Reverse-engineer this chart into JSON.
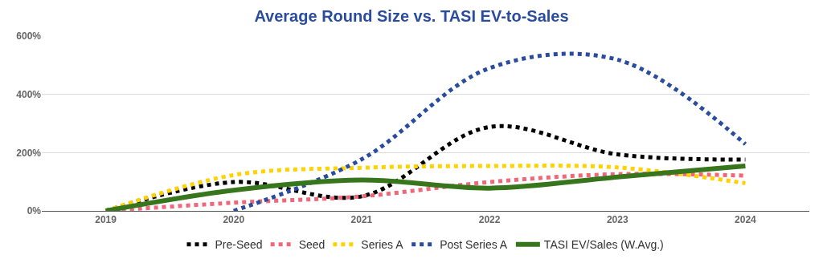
{
  "chart_data": {
    "type": "line",
    "title": "Average Round Size vs. TASI EV-to-Sales",
    "x": [
      2019,
      2020,
      2021,
      2022,
      2023,
      2024
    ],
    "series": [
      {
        "name": "Pre-Seed",
        "color": "#000000",
        "line_style": "dotted",
        "values": [
          0,
          99,
          50,
          288,
          194,
          176
        ]
      },
      {
        "name": "Seed",
        "color": "#f0677a",
        "line_style": "dotted",
        "values": [
          0,
          28,
          50,
          99,
          126,
          121
        ]
      },
      {
        "name": "Series A",
        "color": "#ffd200",
        "line_style": "dotted",
        "values": [
          0,
          123,
          148,
          154,
          149,
          95
        ]
      },
      {
        "name": "Post Series A",
        "color": "#2a4c9e",
        "line_style": "dotted",
        "values": [
          null,
          0,
          177,
          490,
          519,
          229
        ]
      },
      {
        "name": "TASI EV/Sales (W.Avg.)",
        "color": "#38761d",
        "line_style": "solid",
        "values": [
          0,
          71,
          106,
          78,
          116,
          154
        ]
      }
    ],
    "xlim": [
      2018.5,
      2024.5
    ],
    "xticks": [
      2019,
      2020,
      2021,
      2022,
      2023,
      2024
    ],
    "ylim": [
      0,
      600
    ],
    "yticks": [
      {
        "value": 0,
        "label": "0%"
      },
      {
        "value": 200,
        "label": "200%"
      },
      {
        "value": 400,
        "label": "400%"
      },
      {
        "value": 600,
        "label": "600%"
      }
    ],
    "grid": "y",
    "legend": "bottom"
  }
}
